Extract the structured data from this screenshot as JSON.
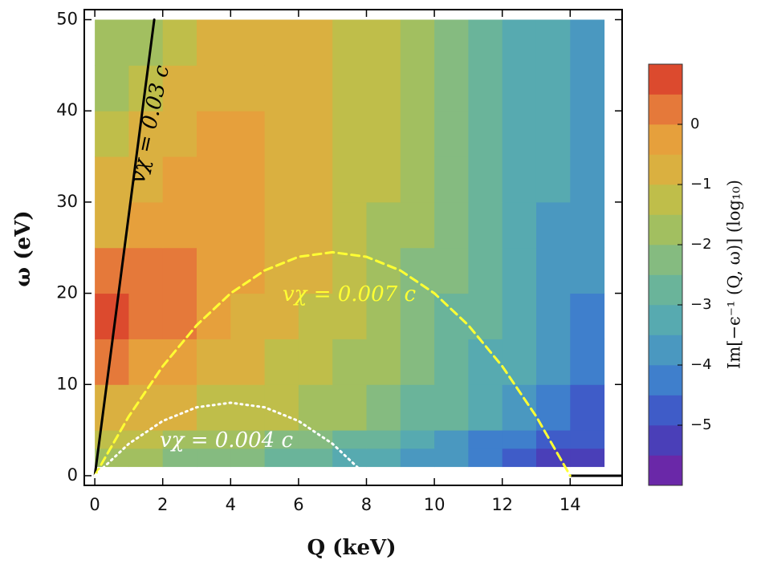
{
  "chart_data": {
    "type": "heatmap",
    "x_edges": [
      0,
      1,
      2,
      3,
      4,
      5,
      6,
      7,
      8,
      9,
      10,
      11,
      12,
      13,
      14,
      15
    ],
    "y_edges": [
      1,
      3,
      5,
      10,
      15,
      20,
      25,
      30,
      35,
      40,
      45,
      50
    ],
    "z": [
      [
        -1.6,
        -2.0,
        -2.2,
        -2.4,
        -2.5,
        -2.7,
        -2.9,
        -3.1,
        -3.4,
        -3.7,
        -4.0,
        -4.4,
        -4.8,
        -5.2,
        -5.5
      ],
      [
        -1.2,
        -1.5,
        -1.7,
        -1.9,
        -2.0,
        -2.2,
        -2.4,
        -2.7,
        -3.0,
        -3.3,
        -3.7,
        -4.1,
        -4.5,
        -4.8,
        -5.0
      ],
      [
        -0.6,
        -0.8,
        -0.9,
        -1.1,
        -1.3,
        -1.5,
        -1.7,
        -2.0,
        -2.3,
        -2.6,
        -3.0,
        -3.4,
        -3.8,
        -4.2,
        -4.6
      ],
      [
        0.2,
        -0.2,
        -0.4,
        -0.7,
        -0.9,
        -1.1,
        -1.3,
        -1.6,
        -1.9,
        -2.3,
        -2.7,
        -3.1,
        -3.5,
        -3.9,
        -4.3
      ],
      [
        0.6,
        0.3,
        0.1,
        -0.3,
        -0.6,
        -0.8,
        -1.1,
        -1.4,
        -1.8,
        -2.2,
        -2.6,
        -3.0,
        -3.4,
        -3.9,
        -4.2
      ],
      [
        0.1,
        0.2,
        0.3,
        -0.2,
        -0.4,
        -0.7,
        -1.0,
        -1.3,
        -1.7,
        -2.1,
        -2.5,
        -2.9,
        -3.3,
        -3.7,
        -4.0
      ],
      [
        -0.7,
        -0.3,
        -0.2,
        -0.3,
        -0.3,
        -0.6,
        -0.9,
        -1.2,
        -1.6,
        -2.0,
        -2.4,
        -2.8,
        -3.2,
        -3.6,
        -3.9
      ],
      [
        -0.8,
        -0.7,
        -0.5,
        -0.4,
        -0.3,
        -0.6,
        -0.8,
        -1.2,
        -1.5,
        -1.9,
        -2.3,
        -2.7,
        -3.1,
        -3.5,
        -3.8
      ],
      [
        -1.2,
        -1.0,
        -0.6,
        -0.4,
        -0.3,
        -0.7,
        -0.8,
        -1.1,
        -1.5,
        -1.9,
        -2.3,
        -2.7,
        -3.1,
        -3.5,
        -3.8
      ],
      [
        -1.6,
        -1.3,
        -0.9,
        -0.8,
        -0.7,
        -0.7,
        -0.8,
        -1.1,
        -1.5,
        -1.9,
        -2.3,
        -2.7,
        -3.1,
        -3.5,
        -3.8
      ],
      [
        -1.7,
        -1.7,
        -1.2,
        -1.0,
        -0.8,
        -0.8,
        -0.8,
        -1.1,
        -1.5,
        -1.9,
        -2.3,
        -2.7,
        -3.1,
        -3.5,
        -3.8
      ]
    ],
    "colorscale": {
      "levels": [
        -6,
        -5.5,
        -5,
        -4.5,
        -4,
        -3.5,
        -3,
        -2.5,
        -2,
        -1.5,
        -1,
        -0.5,
        0,
        0.5,
        1
      ],
      "colors": [
        "#6a28a8",
        "#4a3fb8",
        "#3f5cc8",
        "#3f7fcc",
        "#4a98c0",
        "#57aab0",
        "#6ab49a",
        "#85bb80",
        "#a2bf60",
        "#bfbe4a",
        "#dab040",
        "#e6a03c",
        "#e5793a",
        "#dc4a2e"
      ]
    },
    "clim": [
      -6,
      1
    ],
    "cticks": [
      0,
      {
        "value": -1,
        "label": "−1"
      },
      {
        "value": -2,
        "label": "−2"
      },
      {
        "value": -3,
        "label": "−3"
      },
      {
        "value": -4,
        "label": "−4"
      },
      {
        "value": -5,
        "label": "−5"
      }
    ],
    "colorbar_label": "Im[−ϵ⁻¹ (Q, ω)] (log₁₀)",
    "x_label": "Q (keV)",
    "y_label": "ω (eV)",
    "xlim": [
      -0.31,
      15.53
    ],
    "ylim": [
      -1.06,
      51.1
    ],
    "xticks": [
      0,
      2,
      4,
      6,
      8,
      10,
      12,
      14
    ],
    "yticks": [
      0,
      10,
      20,
      30,
      40,
      50
    ],
    "lines": [
      {
        "x": [
          14,
          15.5
        ],
        "y": [
          0,
          0
        ],
        "color": "#000000",
        "style": "solid"
      },
      {
        "x": [
          0,
          1.75
        ],
        "y": [
          0,
          50
        ],
        "color": "#000000",
        "style": "solid"
      },
      {
        "x": [
          0,
          1,
          2,
          3,
          4,
          5,
          6,
          7,
          8,
          9,
          10,
          11,
          12,
          13,
          14
        ],
        "y": [
          0,
          6.5,
          12,
          16.5,
          20,
          22.5,
          24,
          24.5,
          24,
          22.5,
          20,
          16.5,
          12,
          6.5,
          0
        ],
        "color": "#ffff33",
        "style": "dashed"
      },
      {
        "x": [
          0,
          1,
          2,
          3,
          4,
          5,
          6,
          7,
          8
        ],
        "y": [
          0,
          3.5,
          6,
          7.5,
          8,
          7.5,
          6,
          3.5,
          0
        ],
        "color": "#ffffff",
        "style": "dotted"
      }
    ],
    "annotations": [
      "vχ = 0.03 c",
      "vχ = 0.007 c",
      "vχ = 0.004 c"
    ]
  }
}
